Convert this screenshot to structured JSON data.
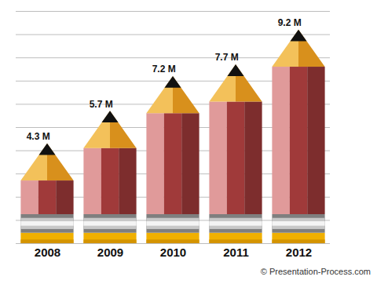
{
  "chart_data": {
    "type": "bar",
    "categories": [
      "2008",
      "2009",
      "2010",
      "2011",
      "2012"
    ],
    "values": [
      4.3,
      5.7,
      7.2,
      7.7,
      9.2
    ],
    "value_labels": [
      "4.3 M",
      "5.7 M",
      "7.2 M",
      "7.7 M",
      "9.2 M"
    ],
    "data_labels": true,
    "color": "#a03a3a",
    "ylim": [
      0,
      10
    ],
    "yticks": [
      0,
      1,
      2,
      3,
      4,
      5,
      6,
      7,
      8,
      9,
      10
    ],
    "grid": true,
    "tick_labels": "x",
    "annotations": [
      "© Presentation-Process.com"
    ]
  }
}
